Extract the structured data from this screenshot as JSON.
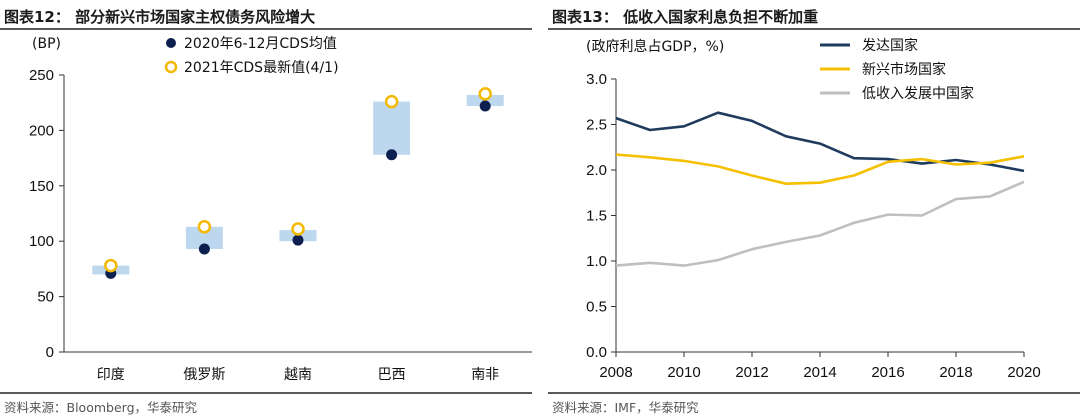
{
  "chart_data": [
    {
      "type": "bar",
      "title": "图表12：  部分新兴市场国家主权债务风险增大",
      "ylabel": "(BP)",
      "ylim": [
        0,
        250
      ],
      "yticks": [
        0,
        50,
        100,
        150,
        200,
        250
      ],
      "categories": [
        "印度",
        "俄罗斯",
        "越南",
        "巴西",
        "南非"
      ],
      "ranges": [
        [
          70,
          78
        ],
        [
          93,
          113
        ],
        [
          100,
          110
        ],
        [
          178,
          226
        ],
        [
          222,
          232
        ]
      ],
      "series": [
        {
          "name": "2020年6-12月CDS均值",
          "values": [
            71,
            93,
            101,
            178,
            222
          ],
          "marker": "filled-circle",
          "color": "#0d1f4e"
        },
        {
          "name": "2021年CDS最新值(4/1)",
          "values": [
            78,
            113,
            111,
            226,
            233
          ],
          "marker": "hollow-circle",
          "color": "#f5b800"
        }
      ],
      "bar_color": "#bdd7ee",
      "legend": "top-left",
      "source": "资料来源：Bloomberg，华泰研究"
    },
    {
      "type": "line",
      "title": "图表13：  低收入国家利息负担不断加重",
      "ylabel": "(政府利息占GDP，%)",
      "ylim": [
        0.0,
        3.0
      ],
      "yticks": [
        "0.0",
        "0.5",
        "1.0",
        "1.5",
        "2.0",
        "2.5",
        "3.0"
      ],
      "xlim": [
        2008,
        2020
      ],
      "xticks": [
        "2008",
        "2010",
        "2012",
        "2014",
        "2016",
        "2018",
        "2020"
      ],
      "x": [
        2008,
        2009,
        2010,
        2011,
        2012,
        2013,
        2014,
        2015,
        2016,
        2017,
        2018,
        2019,
        2020
      ],
      "series": [
        {
          "name": "发达国家",
          "color": "#1f3b5e",
          "values": [
            2.57,
            2.44,
            2.48,
            2.63,
            2.54,
            2.37,
            2.29,
            2.13,
            2.12,
            2.07,
            2.11,
            2.06,
            1.99
          ]
        },
        {
          "name": "新兴市场国家",
          "color": "#f5c000",
          "values": [
            2.17,
            2.14,
            2.1,
            2.04,
            1.94,
            1.85,
            1.86,
            1.94,
            2.09,
            2.12,
            2.06,
            2.08,
            2.15
          ]
        },
        {
          "name": "低收入发展中国家",
          "color": "#bfbfbf",
          "values": [
            0.95,
            0.98,
            0.95,
            1.01,
            1.13,
            1.21,
            1.28,
            1.42,
            1.51,
            1.5,
            1.68,
            1.71,
            1.87
          ]
        }
      ],
      "legend": "top-right",
      "source": "资料来源：IMF，华泰研究"
    }
  ]
}
